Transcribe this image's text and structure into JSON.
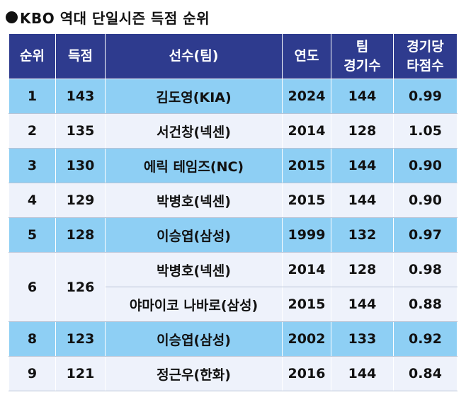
{
  "title": "KBO 역대 단일시즌 득점 순위",
  "colors": {
    "header_bg": "#2e3b8e",
    "highlight_row": "#8ecff4",
    "plain_row": "#eef2fb"
  },
  "headers": {
    "rank": "순위",
    "runs": "득점",
    "player": "선수(팀)",
    "year": "연도",
    "team_games_l1": "팀",
    "team_games_l2": "경기수",
    "runs_per_game_l1": "경기당",
    "runs_per_game_l2": "타점수"
  },
  "rows": [
    {
      "rank": "1",
      "runs": "143",
      "player": "김도영(KIA)",
      "year": "2024",
      "games": "144",
      "rpg": "0.99"
    },
    {
      "rank": "2",
      "runs": "135",
      "player": "서건창(넥센)",
      "year": "2014",
      "games": "128",
      "rpg": "1.05"
    },
    {
      "rank": "3",
      "runs": "130",
      "player": "에릭 테임즈(NC)",
      "year": "2015",
      "games": "144",
      "rpg": "0.90"
    },
    {
      "rank": "4",
      "runs": "129",
      "player": "박병호(넥센)",
      "year": "2015",
      "games": "144",
      "rpg": "0.90"
    },
    {
      "rank": "5",
      "runs": "128",
      "player": "이승엽(삼성)",
      "year": "1999",
      "games": "132",
      "rpg": "0.97"
    },
    {
      "rank": "6",
      "runs": "126",
      "player": "박병호(넥센)",
      "year": "2014",
      "games": "128",
      "rpg": "0.98"
    },
    {
      "rank": "",
      "runs": "",
      "player": "야마이코 나바로(삼성)",
      "year": "2015",
      "games": "144",
      "rpg": "0.88"
    },
    {
      "rank": "8",
      "runs": "123",
      "player": "이승엽(삼성)",
      "year": "2002",
      "games": "133",
      "rpg": "0.92"
    },
    {
      "rank": "9",
      "runs": "121",
      "player": "정근우(한화)",
      "year": "2016",
      "games": "144",
      "rpg": "0.84"
    }
  ]
}
